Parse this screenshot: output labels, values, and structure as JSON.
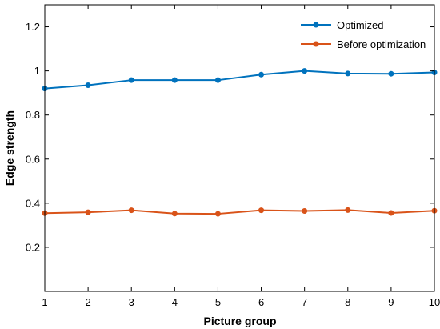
{
  "chart_data": {
    "type": "line",
    "title": "",
    "xlabel": "Picture group",
    "ylabel": "Edge strength",
    "x": [
      1,
      2,
      3,
      4,
      5,
      6,
      7,
      8,
      9,
      10
    ],
    "xlim": [
      1,
      10
    ],
    "ylim": [
      0,
      1.3
    ],
    "xticks": [
      "1",
      "2",
      "3",
      "4",
      "5",
      "6",
      "7",
      "8",
      "9",
      "10"
    ],
    "yticks": [
      0.2,
      0.4,
      0.6,
      0.8,
      1,
      1.2
    ],
    "ytick_labels": [
      "0.2",
      "0.4",
      "0.6",
      "0.8",
      "1",
      "1.2"
    ],
    "grid": false,
    "legend_position": "top-right",
    "series": [
      {
        "name": "Optimized",
        "color": "#0072BD",
        "values": [
          0.92,
          0.935,
          0.958,
          0.958,
          0.958,
          0.983,
          1.0,
          0.988,
          0.987,
          0.993
        ]
      },
      {
        "name": "Before optimization",
        "color": "#D95319",
        "values": [
          0.355,
          0.359,
          0.368,
          0.353,
          0.352,
          0.368,
          0.365,
          0.369,
          0.356,
          0.366
        ]
      }
    ]
  }
}
